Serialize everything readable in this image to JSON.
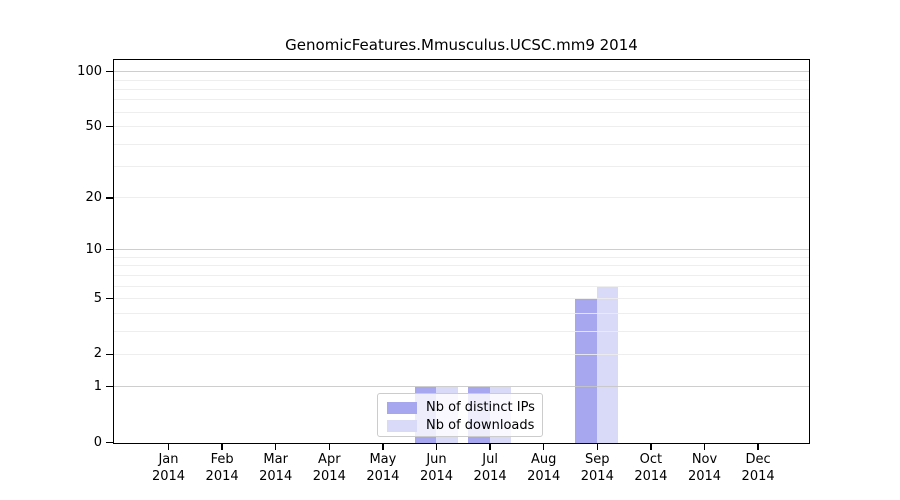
{
  "title": "GenomicFeatures.Mmusculus.UCSC.mm9 2014",
  "legend": {
    "items": [
      {
        "label": "Nb of distinct IPs",
        "color": "#a7a7ef"
      },
      {
        "label": "Nb of downloads",
        "color": "#d9d9f8"
      }
    ]
  },
  "colors": {
    "bar_distinct_ips": "#a7a7ef",
    "bar_downloads": "#d9d9f8",
    "grid_major": "#c6c6c6",
    "grid_minor": "#ececec",
    "spine": "#000000",
    "legend_border": "#cccccc"
  },
  "chart_data": {
    "type": "bar",
    "title": "GenomicFeatures.Mmusculus.UCSC.mm9 2014",
    "categories": [
      "Jan 2014",
      "Feb 2014",
      "Mar 2014",
      "Apr 2014",
      "May 2014",
      "Jun 2014",
      "Jul 2014",
      "Aug 2014",
      "Sep 2014",
      "Oct 2014",
      "Nov 2014",
      "Dec 2014"
    ],
    "series": [
      {
        "name": "Nb of distinct IPs",
        "color": "#a7a7ef",
        "values": [
          0,
          0,
          0,
          0,
          0,
          1,
          1,
          0,
          5,
          0,
          0,
          0
        ]
      },
      {
        "name": "Nb of downloads",
        "color": "#d9d9f8",
        "values": [
          0,
          0,
          0,
          0,
          0,
          1,
          1,
          0,
          6,
          0,
          0,
          0
        ]
      }
    ],
    "xlabel": "",
    "ylabel": "",
    "yscale": "log1p",
    "ylim": [
      0,
      115
    ],
    "y_ticks": [
      0,
      1,
      2,
      5,
      10,
      20,
      50,
      100
    ],
    "y_major_grid": [
      1,
      10,
      100
    ],
    "y_minor_grid": [
      2,
      3,
      4,
      5,
      6,
      7,
      8,
      9,
      20,
      30,
      40,
      50,
      60,
      70,
      80,
      90
    ],
    "grid": true,
    "legend_position": "lower center"
  }
}
